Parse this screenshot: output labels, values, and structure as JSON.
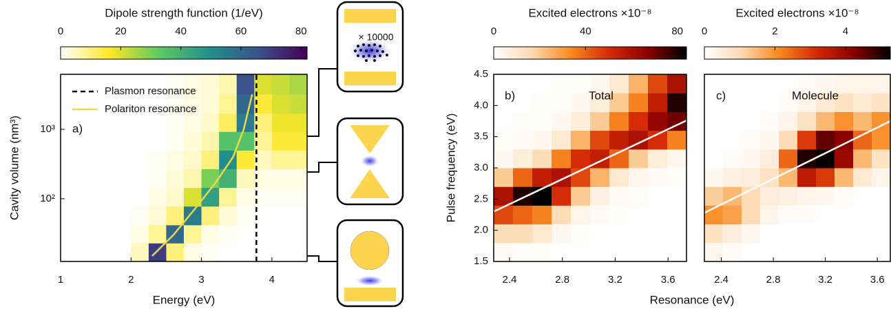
{
  "schematic": {
    "label": "× 10000"
  },
  "chart_data": [
    {
      "type": "heatmap",
      "title": "Dipole strength function (1/eV)",
      "xlabel": "Energy (eV)",
      "ylabel": "Cavity volume (nm³)",
      "annotations": [
        "a)"
      ],
      "ylog": true,
      "legend": "upper left",
      "xlim": [
        1,
        4.5
      ],
      "ylim": [
        12.5,
        6200
      ],
      "xticks": [
        1,
        2,
        3,
        4
      ],
      "yticks": [
        {
          "value": 100,
          "label": "10²"
        },
        {
          "value": 1000,
          "label": "10³"
        }
      ],
      "colormap": [
        "#ffffff",
        "#fde725",
        "#5ec962",
        "#21918c",
        "#3b528b",
        "#440154"
      ],
      "clim": [
        0,
        82
      ],
      "cticks": [
        0,
        20,
        40,
        60,
        80
      ],
      "x_edges": [
        1,
        1.25,
        1.5,
        1.75,
        2,
        2.25,
        2.5,
        2.75,
        3,
        3.25,
        3.5,
        3.75,
        4,
        4.25,
        4.5
      ],
      "y_edges": [
        12.5,
        23,
        42,
        78,
        145,
        270,
        500,
        930,
        1700,
        3200,
        6200
      ],
      "z": [
        [
          0,
          0,
          0,
          0,
          5,
          70,
          10,
          2,
          1,
          0,
          0,
          0,
          0,
          0
        ],
        [
          0,
          0,
          0,
          0,
          2,
          8,
          60,
          8,
          2,
          1,
          0,
          0,
          0,
          0
        ],
        [
          0,
          0,
          0,
          0,
          1,
          3,
          10,
          55,
          10,
          3,
          1,
          0,
          0,
          0
        ],
        [
          0,
          0,
          0,
          0,
          0,
          2,
          4,
          20,
          45,
          8,
          2,
          1,
          1,
          1
        ],
        [
          0,
          0,
          0,
          0,
          0,
          1,
          3,
          6,
          30,
          40,
          5,
          2,
          2,
          2
        ],
        [
          0,
          0,
          0,
          0,
          0,
          1,
          2,
          4,
          10,
          50,
          15,
          5,
          8,
          8
        ],
        [
          0,
          0,
          0,
          0,
          0,
          0,
          1,
          3,
          6,
          35,
          35,
          8,
          15,
          15
        ],
        [
          0,
          0,
          0,
          0,
          0,
          0,
          1,
          2,
          4,
          12,
          55,
          10,
          18,
          18
        ],
        [
          0,
          0,
          0,
          0,
          0,
          0,
          1,
          2,
          3,
          8,
          60,
          15,
          20,
          22
        ],
        [
          0,
          0,
          0,
          0,
          0,
          0,
          1,
          2,
          3,
          6,
          65,
          20,
          22,
          25
        ]
      ],
      "series": [
        {
          "name": "Plasmon resonance",
          "color": "#000000",
          "style": "dashed",
          "x": [
            3.78,
            3.78
          ],
          "y": [
            12.5,
            6200
          ]
        },
        {
          "name": "Polariton resonance",
          "color": "#e8d84a",
          "style": "solid",
          "x": [
            2.3,
            2.6,
            2.9,
            3.2,
            3.45,
            3.6,
            3.72
          ],
          "y": [
            15,
            30,
            70,
            170,
            400,
            1000,
            3200
          ]
        }
      ]
    },
    {
      "type": "heatmap",
      "title": "Excited electrons ×10⁻⁸",
      "xlabel": "Resonance (eV)",
      "ylabel": "Pulse frequency (eV)",
      "annotations": [
        "b)",
        "Total"
      ],
      "xlim": [
        2.28,
        3.74
      ],
      "ylim": [
        1.5,
        4.5
      ],
      "xticks": [
        2.4,
        2.8,
        3.2,
        3.6
      ],
      "yticks": [
        1.5,
        {
          "value": 2,
          "label": "2.0"
        },
        2.5,
        {
          "value": 3,
          "label": "3.0"
        },
        3.5,
        {
          "value": 4,
          "label": "4.0"
        },
        4.5
      ],
      "colormap": [
        "#ffffff",
        "#fdd9b0",
        "#f98a1f",
        "#d42a06",
        "#8a0000",
        "#000000"
      ],
      "clim": [
        0,
        84
      ],
      "cticks": [
        0,
        40,
        80
      ],
      "x_edges": [
        2.28,
        2.426,
        2.572,
        2.718,
        2.864,
        3.01,
        3.156,
        3.302,
        3.448,
        3.594,
        3.74
      ],
      "y_edges": [
        1.5,
        1.8,
        2.1,
        2.4,
        2.7,
        3.0,
        3.3,
        3.6,
        3.9,
        4.2,
        4.5
      ],
      "z": [
        [
          2,
          1,
          1,
          0,
          0,
          0,
          0,
          0,
          0,
          0
        ],
        [
          15,
          15,
          10,
          3,
          1,
          0,
          0,
          0,
          0,
          0
        ],
        [
          45,
          40,
          35,
          15,
          5,
          2,
          1,
          0,
          0,
          0
        ],
        [
          60,
          80,
          85,
          50,
          20,
          6,
          2,
          1,
          0,
          0
        ],
        [
          20,
          40,
          55,
          60,
          45,
          25,
          10,
          4,
          2,
          1
        ],
        [
          3,
          8,
          15,
          35,
          50,
          55,
          40,
          20,
          8,
          4
        ],
        [
          1,
          2,
          4,
          10,
          25,
          45,
          55,
          60,
          50,
          35
        ],
        [
          0,
          1,
          1,
          3,
          8,
          20,
          35,
          50,
          65,
          70
        ],
        [
          0,
          0,
          1,
          1,
          3,
          8,
          20,
          35,
          55,
          80
        ],
        [
          0,
          0,
          0,
          1,
          1,
          3,
          10,
          25,
          45,
          60
        ]
      ],
      "series": [
        {
          "color": "#ffffff",
          "style": "solid",
          "x": [
            2.28,
            3.74
          ],
          "y": [
            2.3,
            3.76
          ]
        }
      ]
    },
    {
      "type": "heatmap",
      "title": "Excited electrons ×10⁻⁸",
      "annotations": [
        "c)",
        "Molecule"
      ],
      "xlim": [
        2.27,
        3.7
      ],
      "ylim": [
        1.5,
        4.5
      ],
      "xticks": [
        2.4,
        2.8,
        3.2,
        3.6
      ],
      "colormap": [
        "#ffffff",
        "#fdd9b0",
        "#f98a1f",
        "#d42a06",
        "#8a0000",
        "#000000"
      ],
      "clim": [
        0,
        5.27
      ],
      "cticks": [
        0,
        2,
        4
      ],
      "x_edges": [
        2.27,
        2.413,
        2.556,
        2.699,
        2.842,
        2.985,
        3.128,
        3.271,
        3.414,
        3.557,
        3.7
      ],
      "y_edges": [
        1.5,
        1.8,
        2.1,
        2.4,
        2.7,
        3.0,
        3.3,
        3.6,
        3.9,
        4.2,
        4.5
      ],
      "z": [
        [
          0.2,
          0.1,
          0,
          0,
          0,
          0,
          0,
          0,
          0,
          0
        ],
        [
          0.8,
          0.5,
          0.2,
          0,
          0,
          0,
          0,
          0,
          0,
          0
        ],
        [
          2.0,
          1.8,
          1.0,
          0.3,
          0.1,
          0.1,
          0,
          0,
          0,
          0
        ],
        [
          1.2,
          1.5,
          1.0,
          0.5,
          0.4,
          0.3,
          0.2,
          0.1,
          0,
          0
        ],
        [
          0.2,
          0.4,
          0.5,
          0.8,
          1.5,
          3.5,
          3.0,
          1.5,
          0.6,
          0.3
        ],
        [
          0,
          0.1,
          0.2,
          0.5,
          2.5,
          5.0,
          5.2,
          4.0,
          1.5,
          0.8
        ],
        [
          0,
          0,
          0.1,
          0.2,
          1.0,
          3.0,
          4.5,
          4.2,
          2.5,
          2.0
        ],
        [
          0,
          0,
          0,
          0.1,
          0.3,
          0.8,
          1.5,
          2.0,
          1.5,
          2.0
        ],
        [
          0,
          0,
          0,
          0,
          0.1,
          0.3,
          0.6,
          0.8,
          0.6,
          0.8
        ],
        [
          0,
          0,
          0,
          0,
          0,
          0.1,
          0.2,
          0.3,
          0.3,
          0.3
        ]
      ],
      "series": [
        {
          "color": "#ffffff",
          "style": "solid",
          "x": [
            2.27,
            3.7
          ],
          "y": [
            2.28,
            3.75
          ]
        }
      ]
    }
  ]
}
